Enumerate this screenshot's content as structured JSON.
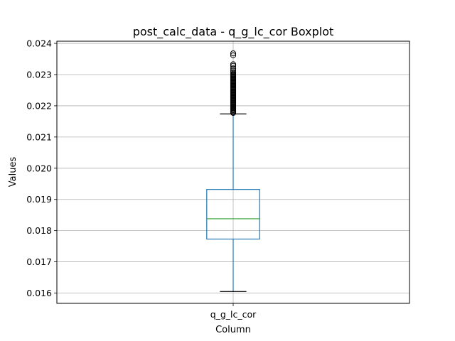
{
  "chart_data": {
    "type": "boxplot",
    "title": "post_calc_data - q_g_lc_cor Boxplot",
    "xlabel": "Column",
    "ylabel": "Values",
    "categories": [
      "q_g_lc_cor"
    ],
    "ylim": [
      0.01567,
      0.02407
    ],
    "yticks": [
      0.016,
      0.017,
      0.018,
      0.019,
      0.02,
      0.021,
      0.022,
      0.023,
      0.024
    ],
    "ytick_labels": [
      "0.016",
      "0.017",
      "0.018",
      "0.019",
      "0.020",
      "0.021",
      "0.022",
      "0.023",
      "0.024"
    ],
    "grid": true,
    "boxes": [
      {
        "name": "q_g_lc_cor",
        "whisker_low": 0.01605,
        "q1": 0.01773,
        "median": 0.01838,
        "q3": 0.01932,
        "whisker_high": 0.02174,
        "outliers": [
          0.02177,
          0.0218,
          0.02183,
          0.02186,
          0.02189,
          0.02192,
          0.02195,
          0.02198,
          0.02201,
          0.02204,
          0.02207,
          0.0221,
          0.02213,
          0.02216,
          0.02219,
          0.02222,
          0.02225,
          0.02228,
          0.02231,
          0.02234,
          0.02237,
          0.0224,
          0.02243,
          0.02246,
          0.02249,
          0.02252,
          0.02255,
          0.02258,
          0.02261,
          0.02264,
          0.02267,
          0.0227,
          0.02273,
          0.02276,
          0.02279,
          0.02282,
          0.02285,
          0.02288,
          0.02291,
          0.02294,
          0.02297,
          0.023,
          0.02303,
          0.02308,
          0.02313,
          0.0232,
          0.02328,
          0.02333,
          0.02362,
          0.02368
        ]
      }
    ],
    "colors": {
      "box": "#1f77b4",
      "median": "#2ca02c",
      "whisker": "#1f77b4",
      "cap": "#000000",
      "outlier": "#000000",
      "grid": "#b0b0b0"
    }
  }
}
